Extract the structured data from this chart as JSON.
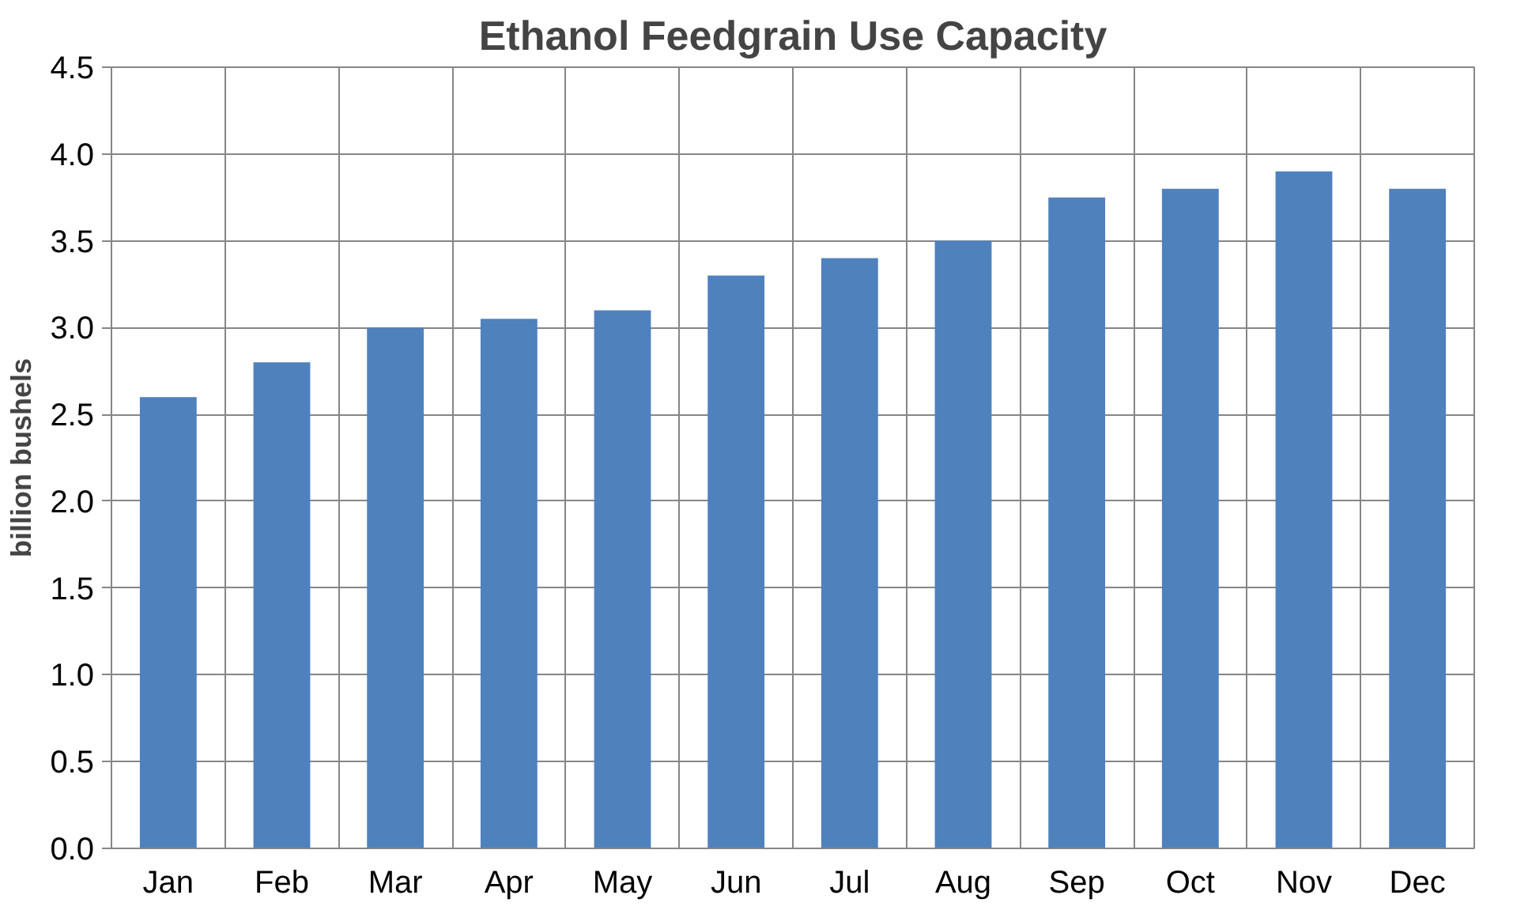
{
  "chart_data": {
    "type": "bar",
    "title": "Ethanol Feedgrain Use Capacity",
    "ylabel": "billion bushels",
    "categories": [
      "Jan",
      "Feb",
      "Mar",
      "Apr",
      "May",
      "Jun",
      "Jul",
      "Aug",
      "Sep",
      "Oct",
      "Nov",
      "Dec"
    ],
    "values": [
      2.6,
      2.8,
      3.0,
      3.05,
      3.1,
      3.3,
      3.4,
      3.5,
      3.75,
      3.8,
      3.9,
      3.8
    ],
    "color": "#4f81bd",
    "ylim": [
      0,
      4.5
    ],
    "yticks": [
      {
        "value": 0,
        "label": "0.0"
      },
      {
        "value": 0.5,
        "label": "0.5"
      },
      {
        "value": 1,
        "label": "1.0"
      },
      {
        "value": 1.5,
        "label": "1.5"
      },
      {
        "value": 2,
        "label": "2.0"
      },
      {
        "value": 2.5,
        "label": "2.5"
      },
      {
        "value": 3,
        "label": "3.0"
      },
      {
        "value": 3.5,
        "label": "3.5"
      },
      {
        "value": 4,
        "label": "4.0"
      },
      {
        "value": 4.5,
        "label": "4.5"
      }
    ],
    "grid": true
  }
}
